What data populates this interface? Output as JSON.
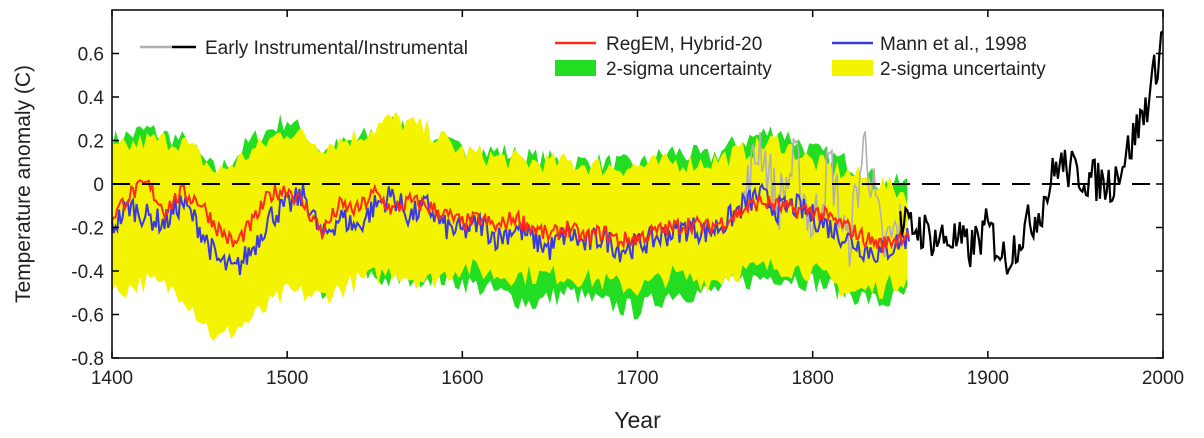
{
  "chart_data": {
    "type": "line",
    "xlabel": "Year",
    "ylabel": "Temperature anomaly (C)",
    "xlim": [
      1400,
      2000
    ],
    "ylim": [
      -0.8,
      0.8
    ],
    "x_ticks": [
      1400,
      1500,
      1600,
      1700,
      1800,
      1900,
      2000
    ],
    "y_ticks": [
      -0.8,
      -0.6,
      -0.4,
      -0.2,
      0,
      0.2,
      0.4,
      0.6
    ],
    "y_tick_labels": [
      "-0.8",
      "-0.6",
      "-0.4",
      "-0.2",
      "0",
      "0.2",
      "0.4",
      "0.6"
    ],
    "legend_position": "top",
    "zero_line": "dashed",
    "legend": {
      "instrumental": "Early Instrumental/Instrumental",
      "regem": "RegEM, Hybrid-20",
      "regem_band": "2-sigma uncertainty",
      "mann": "Mann et al., 1998",
      "mann_band": "2-sigma uncertainty"
    },
    "colors": {
      "instrumental": "#000000",
      "early_instrumental": "#b0b0b0",
      "regem": "#ff2a1a",
      "mann": "#3a3ae0",
      "regem_band": "#22dd22",
      "mann_band": "#f4f400",
      "zero_line": "#000000"
    },
    "series": [
      {
        "name": "RegEM, Hybrid-20",
        "x": [
          1400,
          1410,
          1420,
          1430,
          1440,
          1450,
          1460,
          1470,
          1480,
          1490,
          1500,
          1510,
          1520,
          1530,
          1540,
          1550,
          1560,
          1570,
          1580,
          1590,
          1600,
          1610,
          1620,
          1630,
          1640,
          1650,
          1660,
          1670,
          1680,
          1690,
          1700,
          1710,
          1720,
          1730,
          1740,
          1750,
          1760,
          1770,
          1780,
          1790,
          1800,
          1810,
          1820,
          1830,
          1840,
          1850,
          1855
        ],
        "values": [
          -0.15,
          -0.05,
          0.0,
          -0.12,
          -0.04,
          -0.08,
          -0.2,
          -0.28,
          -0.18,
          -0.05,
          -0.02,
          -0.1,
          -0.22,
          -0.1,
          -0.12,
          -0.04,
          -0.12,
          -0.08,
          -0.1,
          -0.14,
          -0.18,
          -0.16,
          -0.2,
          -0.15,
          -0.2,
          -0.24,
          -0.2,
          -0.25,
          -0.22,
          -0.26,
          -0.25,
          -0.22,
          -0.2,
          -0.18,
          -0.2,
          -0.17,
          -0.12,
          -0.08,
          -0.1,
          -0.12,
          -0.12,
          -0.16,
          -0.2,
          -0.25,
          -0.28,
          -0.24,
          -0.22
        ]
      },
      {
        "name": "Mann et al., 1998",
        "x": [
          1400,
          1410,
          1420,
          1430,
          1440,
          1450,
          1460,
          1470,
          1480,
          1490,
          1500,
          1510,
          1520,
          1530,
          1540,
          1550,
          1560,
          1570,
          1580,
          1590,
          1600,
          1610,
          1620,
          1630,
          1640,
          1650,
          1660,
          1670,
          1680,
          1690,
          1700,
          1710,
          1720,
          1730,
          1740,
          1750,
          1760,
          1770,
          1780,
          1790,
          1800,
          1810,
          1820,
          1830,
          1840,
          1850,
          1855
        ],
        "values": [
          -0.2,
          -0.1,
          -0.15,
          -0.18,
          -0.08,
          -0.2,
          -0.35,
          -0.4,
          -0.3,
          -0.15,
          -0.1,
          -0.05,
          -0.25,
          -0.15,
          -0.2,
          -0.1,
          -0.05,
          -0.15,
          -0.1,
          -0.2,
          -0.22,
          -0.18,
          -0.25,
          -0.2,
          -0.25,
          -0.3,
          -0.22,
          -0.28,
          -0.24,
          -0.3,
          -0.28,
          -0.25,
          -0.22,
          -0.2,
          -0.22,
          -0.18,
          -0.1,
          -0.05,
          -0.12,
          -0.1,
          -0.15,
          -0.2,
          -0.25,
          -0.3,
          -0.32,
          -0.26,
          -0.24
        ]
      },
      {
        "name": "Early Instrumental/Instrumental",
        "x": [
          1760,
          1770,
          1780,
          1790,
          1800,
          1810,
          1820,
          1830,
          1840,
          1850,
          1860,
          1870,
          1880,
          1890,
          1900,
          1910,
          1920,
          1930,
          1940,
          1950,
          1960,
          1970,
          1980,
          1990,
          1995,
          2000
        ],
        "values": [
          -0.1,
          0.2,
          -0.1,
          0.1,
          -0.2,
          0.1,
          -0.3,
          0.2,
          -0.3,
          -0.2,
          -0.2,
          -0.25,
          -0.25,
          -0.3,
          -0.2,
          -0.35,
          -0.22,
          -0.12,
          0.1,
          0.05,
          0.02,
          0.0,
          0.15,
          0.35,
          0.5,
          0.7
        ]
      },
      {
        "name": "2-sigma uncertainty (RegEM)",
        "x": [
          1400,
          1420,
          1440,
          1460,
          1480,
          1500,
          1520,
          1540,
          1560,
          1580,
          1600,
          1620,
          1640,
          1660,
          1680,
          1700,
          1720,
          1740,
          1760,
          1780,
          1800,
          1820,
          1840,
          1855
        ],
        "lower": [
          -0.45,
          -0.35,
          -0.38,
          -0.5,
          -0.45,
          -0.4,
          -0.5,
          -0.4,
          -0.45,
          -0.42,
          -0.45,
          -0.5,
          -0.55,
          -0.5,
          -0.55,
          -0.58,
          -0.5,
          -0.5,
          -0.45,
          -0.42,
          -0.45,
          -0.5,
          -0.55,
          -0.5
        ],
        "upper": [
          0.2,
          0.25,
          0.2,
          0.05,
          0.2,
          0.3,
          0.15,
          0.2,
          0.28,
          0.22,
          0.15,
          0.15,
          0.12,
          0.1,
          0.1,
          0.08,
          0.15,
          0.12,
          0.2,
          0.25,
          0.15,
          0.1,
          0.0,
          0.0
        ]
      },
      {
        "name": "2-sigma uncertainty (Mann et al.)",
        "x": [
          1400,
          1420,
          1440,
          1460,
          1480,
          1500,
          1520,
          1540,
          1560,
          1580,
          1600,
          1620,
          1640,
          1660,
          1680,
          1700,
          1720,
          1740,
          1760,
          1780,
          1800,
          1820,
          1840,
          1855
        ],
        "lower": [
          -0.5,
          -0.45,
          -0.5,
          -0.72,
          -0.62,
          -0.5,
          -0.52,
          -0.45,
          -0.4,
          -0.45,
          -0.38,
          -0.42,
          -0.42,
          -0.42,
          -0.45,
          -0.48,
          -0.42,
          -0.45,
          -0.4,
          -0.38,
          -0.4,
          -0.5,
          -0.48,
          -0.42
        ],
        "upper": [
          0.15,
          0.2,
          0.2,
          0.05,
          0.15,
          0.25,
          0.18,
          0.22,
          0.3,
          0.25,
          0.15,
          0.12,
          0.1,
          0.1,
          0.08,
          0.08,
          0.1,
          0.1,
          0.15,
          0.2,
          0.1,
          0.05,
          0.0,
          -0.05
        ]
      }
    ]
  }
}
